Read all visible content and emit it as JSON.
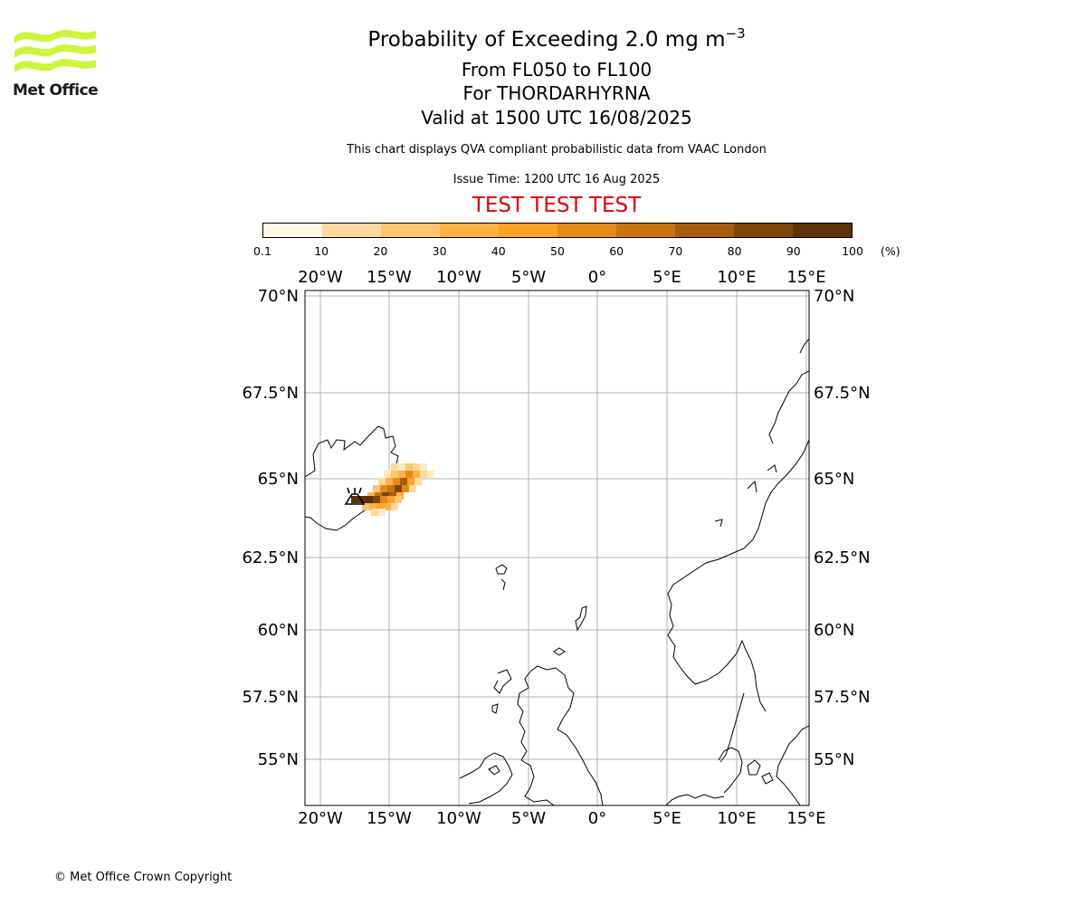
{
  "logo": {
    "text": "Met Office",
    "accent_color": "#ccf53a"
  },
  "title": {
    "line1_prefix": "Probability of Exceeding 2.0 mg m",
    "line1_sup": "−3",
    "line2": "From FL050 to FL100",
    "line3": "For THORDARHYRNA",
    "line4": "Valid at 1500 UTC 16/08/2025"
  },
  "subtitle": "This chart displays QVA compliant probabilistic data from VAAC London",
  "issue_time": "Issue Time: 1200 UTC 16 Aug 2025",
  "test_banner": "TEST TEST TEST",
  "colorbar": {
    "tick_labels": [
      "0.1",
      "10",
      "20",
      "30",
      "40",
      "50",
      "60",
      "70",
      "80",
      "90",
      "100"
    ],
    "unit": "(%)",
    "colors": [
      "#fff6e6",
      "#ffe8c4",
      "#ffd89c",
      "#ffc56e",
      "#ffb145",
      "#fca226",
      "#e48b18",
      "#c97412",
      "#a75d0d",
      "#7e4509",
      "#5c3307"
    ]
  },
  "map": {
    "lon_labels": [
      "20°W",
      "15°W",
      "10°W",
      "5°W",
      "0°",
      "5°E",
      "10°E",
      "15°E"
    ],
    "lat_labels": [
      "70°N",
      "67.5°N",
      "65°N",
      "62.5°N",
      "60°N",
      "57.5°N",
      "55°N"
    ],
    "volcano_icon": "volcano-icon",
    "grid_color": "#b0b0b0"
  },
  "copyright": "© Met Office Crown Copyright"
}
